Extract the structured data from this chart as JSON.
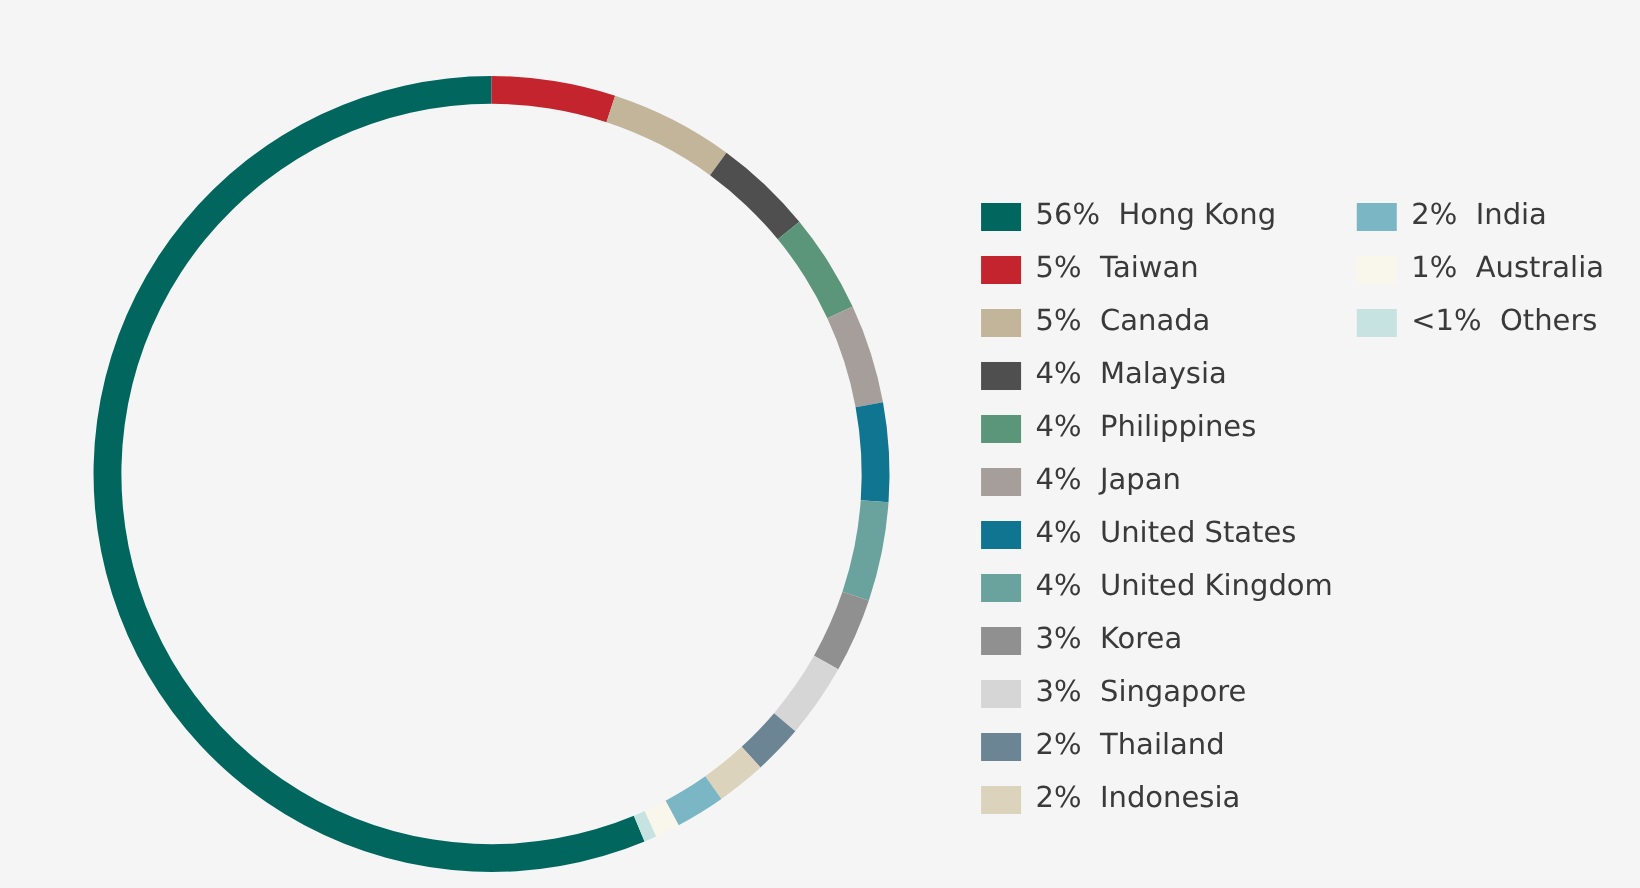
{
  "chart_data": {
    "type": "donut",
    "legend": "right",
    "categories": [
      "Hong Kong",
      "Taiwan",
      "Canada",
      "Malaysia",
      "Philippines",
      "Japan",
      "United States",
      "United Kingdom",
      "Korea",
      "Singapore",
      "Thailand",
      "Indonesia",
      "India",
      "Australia",
      "Others"
    ],
    "values": [
      56,
      5,
      5,
      4,
      4,
      4,
      4,
      4,
      3,
      3,
      2,
      2,
      2,
      1,
      0.5
    ],
    "value_labels": [
      "56%",
      "5%",
      "5%",
      "4%",
      "4%",
      "4%",
      "4%",
      "4%",
      "3%",
      "3%",
      "2%",
      "2%",
      "2%",
      "1%",
      "<1%"
    ],
    "colors": [
      "#00665e",
      "#c4242e",
      "#c2b59a",
      "#4f4f4f",
      "#5c967a",
      "#a59e9b",
      "#107591",
      "#6aa39e",
      "#909090",
      "#d6d6d6",
      "#6c8594",
      "#dbd3bc",
      "#7bb6c4",
      "#f9f6ec",
      "#c6e2e1"
    ]
  }
}
